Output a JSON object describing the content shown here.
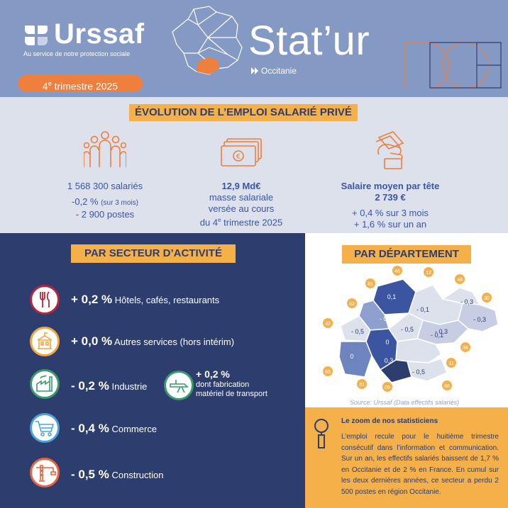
{
  "header": {
    "brand": "Urssaf",
    "tagline": "Au service de notre protection sociale",
    "quarter_num": "4",
    "quarter_sup": "e",
    "quarter_rest": " trimestre 2025",
    "title": "Stat’ur",
    "region": "Occitanie"
  },
  "evolution": {
    "title": "ÉVOLUTION DE L’EMPLOI SALARIÉ PRIVÉ",
    "employees": {
      "icon": "people-icon",
      "value": "1 568 300 salariés",
      "change": "-0,2 %",
      "change_note": "(sur 3 mois)",
      "jobs": "- 2 900 postes"
    },
    "payroll": {
      "icon": "banknotes-icon",
      "value": "12,9 Md€",
      "line1": "masse salariale",
      "line2": "versée au cours",
      "line3_a": "du 4",
      "line3_sup": "e",
      "line3_b": " trimestre 2025"
    },
    "salary": {
      "icon": "hand-money-icon",
      "label": "Salaire moyen par tête",
      "value": "2 739 €",
      "quarter_change": "+ 0,4 % sur 3 mois",
      "year_change": "+ 1,6 % sur un an"
    }
  },
  "sectors": {
    "title": "PAR SECTEUR D’ACTIVITÉ",
    "items": [
      {
        "pct": "+ 0,2 %",
        "label": "Hôtels, cafés, restaurants",
        "icon": "cutlery-icon",
        "color": "#b3283a"
      },
      {
        "pct": "+ 0,0 %",
        "label": "Autres services (hors intérim)",
        "icon": "building-icon",
        "color": "#f1a73c"
      },
      {
        "pct": "- 0,2 %",
        "label": "Industrie",
        "icon": "factory-icon",
        "color": "#3a9a6a"
      },
      {
        "pct": "- 0,4 %",
        "label": "Commerce",
        "icon": "cart-icon",
        "color": "#4aa3d8"
      },
      {
        "pct": "- 0,5 %",
        "label": "Construction",
        "icon": "crane-icon",
        "color": "#e8643c"
      }
    ],
    "transport": {
      "pct": "+ 0,2 %",
      "line1": "dont fabrication",
      "line2": "matériel de transport",
      "icon": "plane-icon",
      "color": "#3a9a6a"
    }
  },
  "departments": {
    "title": "PAR DÉPARTEMENT",
    "codes": [
      "46",
      "12",
      "48",
      "81",
      "82",
      "30",
      "32",
      "34",
      "65",
      "11",
      "31",
      "09",
      "66"
    ],
    "values": [
      "0,1",
      "- 0,1",
      "- 0,3",
      "- 0,2",
      "- 0,5",
      "- 0,5",
      "- 0,3",
      "0",
      "- 0,1",
      "0",
      "0,3",
      "- 0,5",
      "- 0,3"
    ],
    "source": "Source: Urssaf (Data effectifs salariés)"
  },
  "zoom": {
    "icon": "magnifier-icon",
    "title": "Le zoom de nos statisticiens",
    "text": "L’emploi recule pour le huitième trimestre consécutif dans l’information et communication. Sur un an, les effectifs salariés baissent de 1,7 % en Occitanie et de 2 % en France. En cumul sur les deux dernières années, ce secteur a perdu 2 500 postes en région Occitanie."
  },
  "colors": {
    "header_bg": "#8499c4",
    "accent_orange": "#ee7f3c",
    "badge_yellow": "#f6b04a",
    "navy": "#2d3d6d",
    "stat_blue": "#3c55a1",
    "light_band": "#dde1ec"
  }
}
